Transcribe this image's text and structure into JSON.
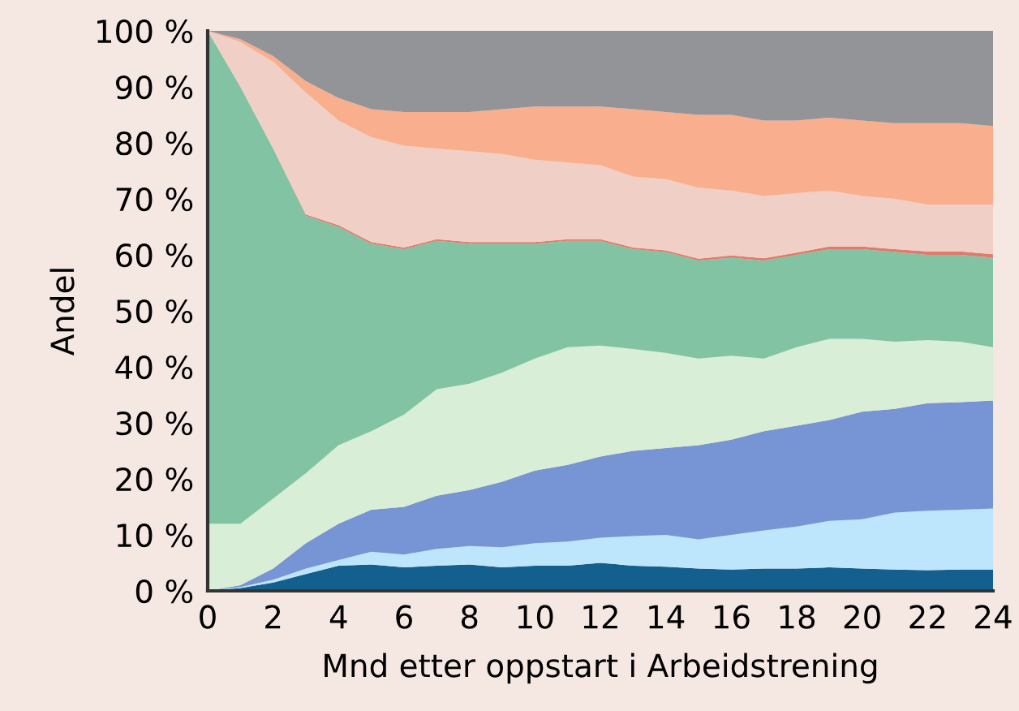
{
  "chart_data": {
    "type": "area",
    "stacked": true,
    "xlabel": "Mnd etter oppstart i Arbeidstrening",
    "ylabel": "Andel",
    "x": [
      0,
      1,
      2,
      3,
      4,
      5,
      6,
      7,
      8,
      9,
      10,
      11,
      12,
      13,
      14,
      15,
      16,
      17,
      18,
      19,
      20,
      21,
      22,
      23,
      24
    ],
    "xlim": [
      0,
      24
    ],
    "xticks": [
      0,
      2,
      4,
      6,
      8,
      10,
      12,
      14,
      16,
      18,
      20,
      22,
      24
    ],
    "ylim": [
      0,
      100
    ],
    "yticks": [
      {
        "value": 0,
        "label": "0 %"
      },
      {
        "value": 10,
        "label": "10 %"
      },
      {
        "value": 20,
        "label": "20 %"
      },
      {
        "value": 30,
        "label": "30 %"
      },
      {
        "value": 40,
        "label": "40 %"
      },
      {
        "value": 50,
        "label": "50 %"
      },
      {
        "value": 60,
        "label": "60 %"
      },
      {
        "value": 70,
        "label": "70 %"
      },
      {
        "value": 80,
        "label": "80 %"
      },
      {
        "value": 90,
        "label": "90 %"
      },
      {
        "value": 100,
        "label": "100 %"
      }
    ],
    "grid": false,
    "legend": false,
    "series": [
      {
        "color": "#135f8d",
        "values": [
          0,
          0.5,
          1.5,
          3,
          4.5,
          4.7,
          4.2,
          4.5,
          4.7,
          4.2,
          4.5,
          4.5,
          5,
          4.5,
          4.3,
          4,
          3.8,
          4,
          4,
          4.2,
          4,
          3.8,
          3.7,
          3.8,
          3.8
        ]
      },
      {
        "color": "#bde5fb",
        "values": [
          0,
          0.2,
          0.5,
          1,
          1,
          2.3,
          2.3,
          3,
          3.3,
          3.6,
          4,
          4.3,
          4.5,
          5.3,
          5.7,
          5.2,
          6.2,
          6.8,
          7.5,
          8.3,
          8.8,
          10.2,
          10.6,
          10.7,
          10.9
        ]
      },
      {
        "color": "#7794d4",
        "values": [
          0,
          0.3,
          2,
          4.5,
          6.5,
          7.5,
          8.5,
          9.5,
          10,
          11.7,
          13,
          13.7,
          14.5,
          15.2,
          15.5,
          16.8,
          17,
          17.7,
          18,
          18,
          19.2,
          18.5,
          19.2,
          19.2,
          19.3
        ]
      },
      {
        "color": "#d8eed6",
        "values": [
          12,
          11,
          12.5,
          12.5,
          14,
          14,
          16.5,
          19,
          19,
          19.5,
          20,
          21,
          19.8,
          18.2,
          17,
          15.5,
          15,
          13,
          14,
          14.5,
          13,
          12,
          11.3,
          10.8,
          9.5
        ]
      },
      {
        "color": "#82c3a4",
        "values": [
          88,
          78,
          62.5,
          46,
          39,
          33.5,
          29.5,
          26.5,
          25,
          23,
          20.5,
          19,
          18.7,
          17.8,
          18,
          17.5,
          17.5,
          17.5,
          16.5,
          16,
          16,
          16,
          15.2,
          15.5,
          16
        ]
      },
      {
        "color": "#e07a6a",
        "values": [
          0,
          0,
          0,
          0.2,
          0.3,
          0.3,
          0.3,
          0.3,
          0.3,
          0.3,
          0.3,
          0.3,
          0.3,
          0.3,
          0.3,
          0.3,
          0.4,
          0.4,
          0.4,
          0.5,
          0.5,
          0.5,
          0.6,
          0.6,
          0.6
        ]
      },
      {
        "color": "#f0cfc6",
        "values": [
          0,
          8,
          15.5,
          21.8,
          18.7,
          18.7,
          18.2,
          16.2,
          16.2,
          15.7,
          14.7,
          13.7,
          13.2,
          12.7,
          12.7,
          12.7,
          11.6,
          11.1,
          10.6,
          10,
          9,
          9,
          8.4,
          8.4,
          8.9
        ]
      },
      {
        "color": "#f9ae8e",
        "values": [
          0,
          0.5,
          1,
          2,
          4,
          5,
          6,
          6.5,
          7,
          8,
          9.5,
          10,
          10.5,
          12,
          12,
          13,
          13.5,
          13.5,
          13,
          13,
          13.5,
          13.5,
          14.5,
          14.5,
          14
        ]
      },
      {
        "color": "#939498",
        "values": [
          0,
          1.5,
          4.5,
          9,
          12,
          14,
          14.5,
          14.5,
          14.5,
          14,
          13.5,
          13.5,
          13.5,
          14,
          14.5,
          15,
          15,
          16,
          16,
          15.5,
          16,
          16.5,
          16.5,
          16.5,
          17
        ]
      }
    ]
  }
}
